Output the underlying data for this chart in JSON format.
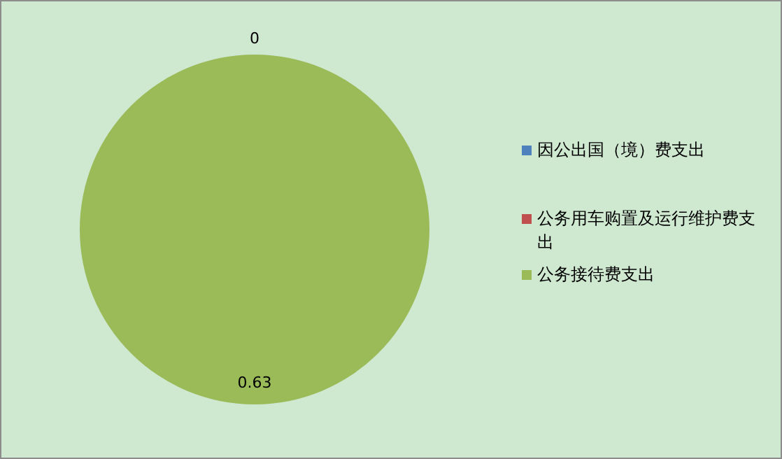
{
  "chart_data": {
    "type": "pie",
    "categories": [
      "因公出国（境）费支出",
      "公务用车购置及运行维护费支出",
      "公务接待费支出"
    ],
    "values": [
      0,
      0,
      0.63
    ],
    "colors": [
      "#4f81bd",
      "#c0504d",
      "#9bbb59"
    ],
    "value_labels": [
      "0",
      null,
      "0.63"
    ],
    "legend": "right"
  }
}
